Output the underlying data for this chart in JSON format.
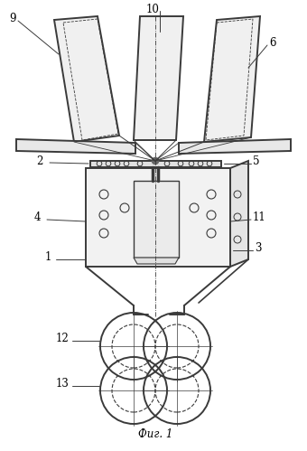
{
  "title": "Фиг. 1",
  "background_color": "#ffffff",
  "line_color": "#3a3a3a",
  "figsize": [
    3.4,
    4.99
  ],
  "dpi": 100
}
